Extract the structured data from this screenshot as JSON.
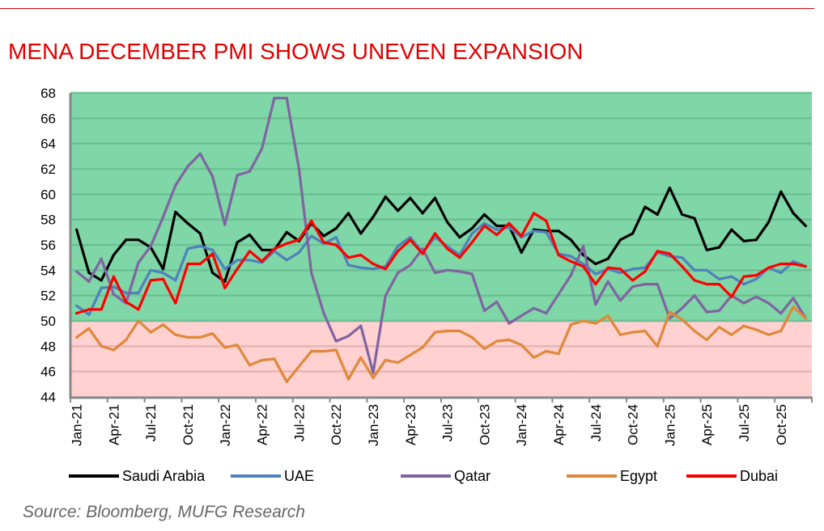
{
  "title": "MENA DECEMBER PMI SHOWS UNEVEN EXPANSION",
  "source": "Source: Bloomberg, MUFG Research",
  "chart_data": {
    "type": "line",
    "title": "MENA DECEMBER PMI SHOWS UNEVEN EXPANSION",
    "xlabel": "",
    "ylabel": "",
    "ylim": [
      44,
      68
    ],
    "yticks": [
      44,
      46,
      48,
      50,
      52,
      54,
      56,
      58,
      60,
      62,
      64,
      66,
      68
    ],
    "grid": true,
    "legend_position": "bottom",
    "background_bands": [
      {
        "range": [
          50,
          68
        ],
        "color": "#7fd6a6"
      },
      {
        "range": [
          44,
          50
        ],
        "color": "#ffd1d1"
      }
    ],
    "x_start": "Jan-21",
    "x_end": "Dec-25",
    "x_tick_labels": [
      "Jan-21",
      "Apr-21",
      "Jul-21",
      "Oct-21",
      "Jan-22",
      "Apr-22",
      "Jul-22",
      "Oct-22",
      "Jan-23",
      "Apr-23",
      "Jul-23",
      "Oct-23",
      "Jan-24",
      "Apr-24",
      "Jul-24",
      "Oct-24",
      "Jan-25",
      "Apr-25",
      "Jul-25",
      "Oct-25"
    ],
    "series": [
      {
        "name": "Saudi Arabia",
        "color": "#000000",
        "values": [
          57.2,
          53.8,
          53.2,
          55.2,
          56.4,
          56.4,
          55.8,
          54.1,
          58.6,
          57.7,
          56.9,
          53.8,
          53.1,
          56.2,
          56.8,
          55.6,
          55.6,
          57.0,
          56.3,
          57.7,
          56.7,
          57.3,
          58.5,
          56.9,
          58.2,
          59.8,
          58.7,
          59.7,
          58.5,
          59.7,
          57.8,
          56.6,
          57.3,
          58.4,
          57.5,
          57.5,
          55.4,
          57.2,
          57.1,
          57.1,
          56.4,
          55.2,
          54.5,
          54.9,
          56.4,
          56.9,
          59.0,
          58.4,
          60.5,
          58.4,
          58.1,
          55.6,
          55.8,
          57.2,
          56.3,
          56.4,
          57.8,
          60.2,
          58.5,
          57.5
        ]
      },
      {
        "name": "UAE",
        "color": "#4f81bd",
        "values": [
          51.2,
          50.5,
          52.6,
          52.7,
          52.2,
          52.2,
          54.0,
          53.8,
          53.2,
          55.7,
          55.9,
          55.6,
          54.1,
          54.8,
          54.8,
          54.6,
          55.5,
          54.8,
          55.4,
          56.7,
          56.1,
          56.6,
          54.4,
          54.2,
          54.1,
          54.3,
          55.9,
          56.6,
          55.4,
          56.6,
          55.9,
          55.2,
          56.9,
          57.7,
          57.2,
          57.4,
          56.6,
          57.1,
          57.0,
          55.3,
          55.1,
          54.5,
          53.7,
          54.1,
          53.8,
          54.1,
          54.2,
          55.4,
          55.1,
          55.0,
          54.0,
          54.0,
          53.3,
          53.5,
          52.9,
          53.3,
          54.2,
          53.8,
          54.7,
          54.3
        ]
      },
      {
        "name": "Qatar",
        "color": "#8064a2",
        "values": [
          53.9,
          53.1,
          54.9,
          52.1,
          51.4,
          54.6,
          55.9,
          58.2,
          60.7,
          62.2,
          63.2,
          61.4,
          57.6,
          61.5,
          61.8,
          63.6,
          67.6,
          67.6,
          62.0,
          53.8,
          50.6,
          48.4,
          48.8,
          49.6,
          45.9,
          52.0,
          53.8,
          54.4,
          55.7,
          53.8,
          54.0,
          53.9,
          53.7,
          50.8,
          51.5,
          49.8,
          50.4,
          51.0,
          50.6,
          52.1,
          53.6,
          55.9,
          51.3,
          53.1,
          51.6,
          52.7,
          52.9,
          52.9,
          50.2,
          51.0,
          52.0,
          50.7,
          50.8,
          52.0,
          51.4,
          51.9,
          51.4,
          50.6,
          51.8,
          50.2
        ]
      },
      {
        "name": "Egypt",
        "color": "#e0883a",
        "values": [
          48.7,
          49.4,
          48.0,
          47.7,
          48.5,
          50.0,
          49.1,
          49.7,
          48.9,
          48.7,
          48.7,
          49.0,
          47.9,
          48.1,
          46.5,
          46.9,
          47.0,
          45.2,
          46.4,
          47.6,
          47.6,
          47.7,
          45.4,
          47.1,
          45.5,
          46.9,
          46.7,
          47.3,
          47.9,
          49.1,
          49.2,
          49.2,
          48.7,
          47.8,
          48.4,
          48.5,
          48.1,
          47.1,
          47.6,
          47.4,
          49.7,
          50.0,
          49.8,
          50.4,
          48.9,
          49.1,
          49.2,
          48.0,
          50.7,
          50.1,
          49.2,
          48.5,
          49.5,
          48.9,
          49.6,
          49.3,
          48.9,
          49.2,
          51.1,
          50.2
        ]
      },
      {
        "name": "Dubai",
        "color": "#ff0000",
        "values": [
          50.6,
          50.9,
          50.9,
          53.5,
          51.5,
          50.9,
          53.2,
          53.3,
          51.4,
          54.5,
          54.5,
          55.3,
          52.6,
          54.1,
          55.5,
          54.7,
          55.7,
          56.1,
          56.4,
          57.9,
          56.2,
          56.0,
          55.0,
          55.2,
          54.5,
          54.1,
          55.5,
          56.4,
          55.3,
          56.9,
          55.7,
          55.0,
          56.2,
          57.5,
          56.8,
          57.7,
          56.7,
          58.5,
          57.9,
          55.2,
          54.7,
          54.3,
          52.9,
          54.2,
          54.1,
          53.2,
          53.9,
          55.5,
          55.3,
          54.3,
          53.2,
          52.9,
          52.9,
          51.9,
          53.5,
          53.6,
          54.2,
          54.5,
          54.5,
          54.3
        ]
      }
    ]
  }
}
